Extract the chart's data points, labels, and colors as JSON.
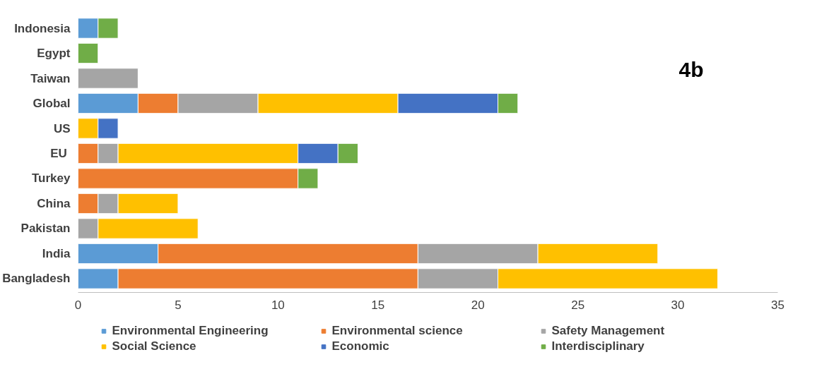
{
  "chart_data": {
    "type": "bar",
    "orientation": "horizontal",
    "stacked": true,
    "categories": [
      "Indonesia",
      "Egypt",
      "Taiwan",
      "Global",
      "US",
      "EU ",
      "Turkey",
      "China",
      "Pakistan",
      "India",
      "Bangladesh"
    ],
    "series": [
      {
        "name": "Environmental Engineering",
        "color": "#5b9bd5",
        "values": [
          1,
          null,
          null,
          3,
          null,
          null,
          null,
          null,
          null,
          4,
          2
        ]
      },
      {
        "name": "Environmental science",
        "color": "#ed7d31",
        "values": [
          null,
          null,
          null,
          2,
          null,
          1,
          11,
          1,
          null,
          13,
          15
        ]
      },
      {
        "name": "Safety Management",
        "color": "#a5a5a5",
        "values": [
          null,
          null,
          3,
          4,
          null,
          1,
          null,
          1,
          1,
          6,
          4
        ]
      },
      {
        "name": "Social Science",
        "color": "#ffc000",
        "values": [
          null,
          null,
          null,
          7,
          1,
          9,
          null,
          3,
          5,
          6,
          11
        ]
      },
      {
        "name": "Economic",
        "color": "#4472c4",
        "values": [
          null,
          null,
          null,
          5,
          1,
          2,
          null,
          null,
          null,
          null,
          null
        ]
      },
      {
        "name": "Interdisciplinary",
        "color": "#70ad47",
        "values": [
          1,
          1,
          null,
          1,
          null,
          1,
          1,
          null,
          null,
          null,
          null
        ]
      }
    ],
    "xlim": [
      0,
      35
    ],
    "xticks": [
      0,
      5,
      10,
      15,
      20,
      25,
      30,
      35
    ],
    "grid": false,
    "legend": "bottom",
    "annotations": [
      "4b"
    ]
  }
}
